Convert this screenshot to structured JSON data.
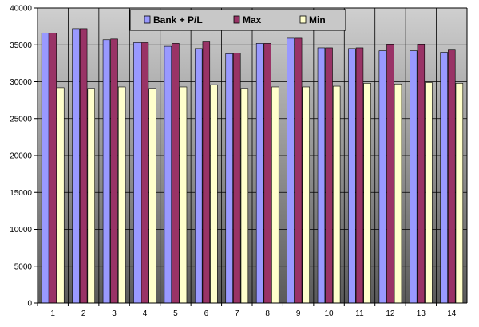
{
  "chart_data": {
    "type": "bar",
    "title": "",
    "xlabel": "",
    "ylabel": "",
    "categories": [
      "1",
      "2",
      "3",
      "4",
      "5",
      "6",
      "7",
      "8",
      "9",
      "10",
      "11",
      "12",
      "13",
      "14"
    ],
    "series": [
      {
        "name": "Bank + P/L",
        "color": "#9999ff",
        "values": [
          36600,
          37200,
          35700,
          35300,
          34800,
          34500,
          33800,
          35200,
          35900,
          34600,
          34500,
          34200,
          34200,
          34000
        ]
      },
      {
        "name": "Max",
        "color": "#993366",
        "values": [
          36600,
          37200,
          35800,
          35300,
          35200,
          35400,
          33900,
          35200,
          35900,
          34600,
          34600,
          35100,
          35100,
          34300
        ]
      },
      {
        "name": "Min",
        "color": "#ffffcc",
        "values": [
          29200,
          29100,
          29300,
          29100,
          29300,
          29600,
          29100,
          29300,
          29300,
          29400,
          29800,
          29700,
          29900,
          29800
        ]
      }
    ],
    "ylim": [
      0,
      40000
    ],
    "yticks": [
      "0",
      "5000",
      "10000",
      "15000",
      "20000",
      "25000",
      "30000",
      "35000",
      "40000"
    ],
    "grid": true,
    "legend_position": "top-center",
    "background_gradient": [
      "#cfcfcf",
      "#5a5a5a"
    ]
  }
}
